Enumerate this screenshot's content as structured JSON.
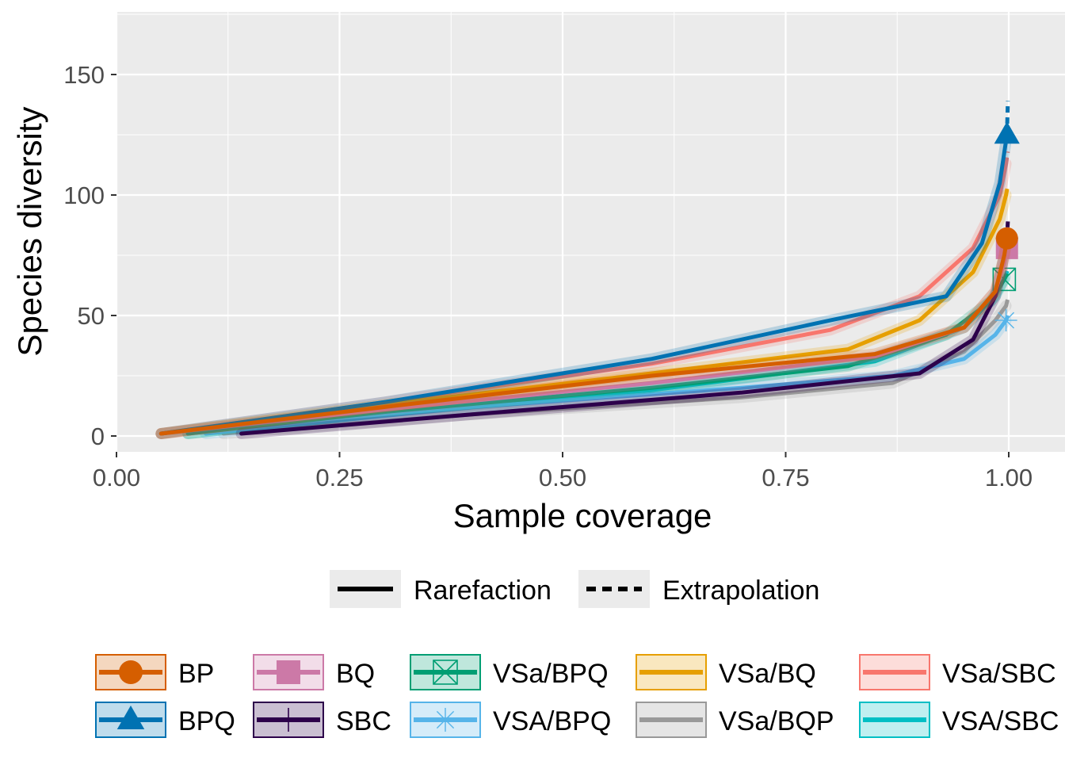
{
  "chart_data": {
    "type": "line",
    "xlabel": "Sample coverage",
    "ylabel": "Species diversity",
    "xlim": [
      0,
      1.0
    ],
    "ylim": [
      -8,
      176
    ],
    "x_ticks": [
      "0.00",
      "0.25",
      "0.50",
      "0.75",
      "1.00"
    ],
    "x_tick_values": [
      0,
      0.25,
      0.5,
      0.75,
      1.0
    ],
    "y_ticks": [
      "0",
      "50",
      "100",
      "150"
    ],
    "y_tick_values": [
      0,
      50,
      100,
      150
    ],
    "background": "#ebebeb",
    "grid": true,
    "legend_position": "bottom",
    "method_legend": [
      {
        "label": "Rarefaction",
        "dash": "solid"
      },
      {
        "label": "Extrapolation",
        "dash": "dashed"
      }
    ],
    "series": [
      {
        "name": "BP",
        "color": "#D55E00",
        "marker": "circle",
        "rarefaction": [
          [
            0.05,
            1
          ],
          [
            0.3,
            12
          ],
          [
            0.6,
            25
          ],
          [
            0.85,
            34
          ],
          [
            0.95,
            45
          ],
          [
            0.985,
            60
          ],
          [
            0.995,
            75
          ],
          [
            0.998,
            82
          ]
        ],
        "extrapolation": [
          [
            0.998,
            82
          ],
          [
            0.999,
            84
          ]
        ]
      },
      {
        "name": "BPQ",
        "color": "#0072B2",
        "marker": "triangle",
        "rarefaction": [
          [
            0.05,
            1
          ],
          [
            0.3,
            14
          ],
          [
            0.6,
            32
          ],
          [
            0.8,
            48
          ],
          [
            0.93,
            58
          ],
          [
            0.97,
            80
          ],
          [
            0.99,
            105
          ],
          [
            0.998,
            125
          ]
        ],
        "extrapolation": [
          [
            0.998,
            125
          ],
          [
            0.999,
            139
          ]
        ]
      },
      {
        "name": "BQ",
        "color": "#CC79A7",
        "marker": "square",
        "rarefaction": [
          [
            0.05,
            1
          ],
          [
            0.3,
            11
          ],
          [
            0.6,
            22
          ],
          [
            0.85,
            33
          ],
          [
            0.95,
            45
          ],
          [
            0.985,
            60
          ],
          [
            0.995,
            72
          ],
          [
            0.998,
            78
          ]
        ],
        "extrapolation": [
          [
            0.998,
            78
          ],
          [
            0.999,
            80
          ]
        ]
      },
      {
        "name": "SBC",
        "color": "#2D004B",
        "marker": "plus",
        "rarefaction": [
          [
            0.14,
            1
          ],
          [
            0.4,
            9
          ],
          [
            0.7,
            18
          ],
          [
            0.9,
            26
          ],
          [
            0.96,
            40
          ],
          [
            0.985,
            58
          ],
          [
            0.995,
            75
          ],
          [
            0.998,
            82
          ]
        ],
        "extrapolation": [
          [
            0.998,
            82
          ],
          [
            0.999,
            89
          ]
        ]
      },
      {
        "name": "VSa/BPQ",
        "color": "#009E73",
        "marker": "boxx",
        "rarefaction": [
          [
            0.08,
            1
          ],
          [
            0.3,
            10
          ],
          [
            0.6,
            20
          ],
          [
            0.82,
            29
          ],
          [
            0.93,
            42
          ],
          [
            0.98,
            56
          ],
          [
            0.995,
            65
          ]
        ],
        "extrapolation": [
          [
            0.995,
            65
          ],
          [
            0.999,
            68
          ]
        ]
      },
      {
        "name": "VSA/BPQ",
        "color": "#56B4E9",
        "marker": "asterisk",
        "rarefaction": [
          [
            0.1,
            1
          ],
          [
            0.4,
            12
          ],
          [
            0.7,
            20
          ],
          [
            0.87,
            25
          ],
          [
            0.95,
            32
          ],
          [
            0.985,
            42
          ],
          [
            0.997,
            48
          ]
        ],
        "extrapolation": [
          [
            0.997,
            48
          ],
          [
            0.999,
            50
          ]
        ]
      },
      {
        "name": "VSa/BQ",
        "color": "#E69F00",
        "marker": "none",
        "rarefaction": [
          [
            0.05,
            1
          ],
          [
            0.3,
            13
          ],
          [
            0.6,
            26
          ],
          [
            0.82,
            36
          ],
          [
            0.9,
            48
          ],
          [
            0.96,
            68
          ],
          [
            0.99,
            90
          ],
          [
            0.997,
            100
          ]
        ],
        "extrapolation": [
          [
            0.997,
            100
          ],
          [
            0.999,
            104
          ]
        ]
      },
      {
        "name": "VSa/BQP",
        "color": "#999999",
        "marker": "none",
        "rarefaction": [
          [
            0.12,
            1
          ],
          [
            0.4,
            9
          ],
          [
            0.7,
            16
          ],
          [
            0.87,
            22
          ],
          [
            0.95,
            35
          ],
          [
            0.985,
            48
          ],
          [
            0.997,
            54
          ]
        ],
        "extrapolation": [
          [
            0.997,
            54
          ],
          [
            0.999,
            57
          ]
        ]
      },
      {
        "name": "VSa/SBC",
        "color": "#F8766D",
        "marker": "none",
        "rarefaction": [
          [
            0.05,
            1
          ],
          [
            0.3,
            14
          ],
          [
            0.6,
            30
          ],
          [
            0.8,
            44
          ],
          [
            0.9,
            58
          ],
          [
            0.96,
            78
          ],
          [
            0.99,
            100
          ],
          [
            0.997,
            113
          ]
        ],
        "extrapolation": [
          [
            0.997,
            113
          ],
          [
            0.999,
            118
          ]
        ]
      },
      {
        "name": "VSA/SBC",
        "color": "#00BFC4",
        "marker": "none",
        "rarefaction": [
          [
            0.08,
            1
          ],
          [
            0.3,
            10
          ],
          [
            0.6,
            19
          ],
          [
            0.85,
            31
          ],
          [
            0.95,
            45
          ],
          [
            0.985,
            58
          ],
          [
            0.996,
            66
          ]
        ],
        "extrapolation": [
          [
            0.996,
            66
          ],
          [
            0.999,
            69
          ]
        ]
      }
    ]
  }
}
